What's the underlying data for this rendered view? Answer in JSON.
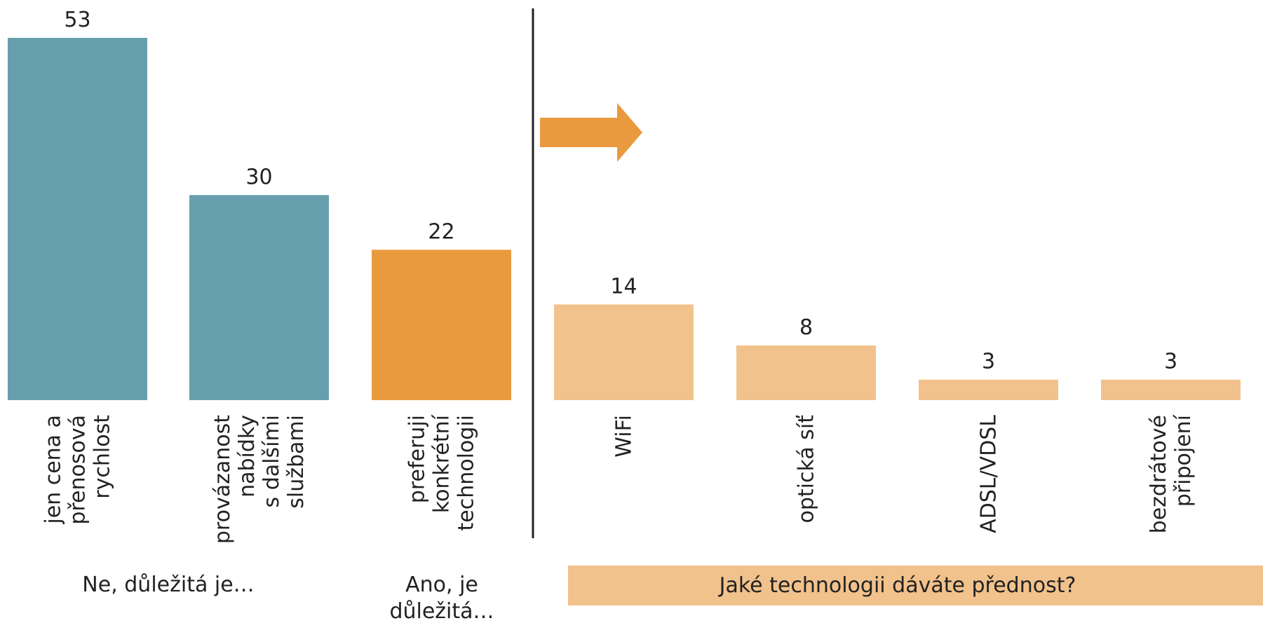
{
  "chart_data": {
    "type": "bar",
    "title": "",
    "xlabel": "",
    "ylabel": "",
    "ylim": [
      0,
      53
    ],
    "categories": [
      [
        "jen cena a",
        "přenosová",
        "rychlost"
      ],
      [
        "provázanost",
        "nabídky",
        "s dalšími",
        "službami"
      ],
      [
        "preferuji",
        "konkrétní",
        "technologii"
      ],
      [
        "WiFi"
      ],
      [
        "optická síť"
      ],
      [
        "ADSL/VDSL"
      ],
      [
        "bezdrátové",
        "připojení"
      ]
    ],
    "values": [
      53,
      30,
      22,
      14,
      8,
      3,
      3
    ],
    "bar_colors": [
      "#679fac",
      "#679fac",
      "#ea9a3e",
      "#f2c28c",
      "#f2c28c",
      "#f2c28c",
      "#f2c28c"
    ],
    "group_labels": [
      [
        "Ne, důležitá je…"
      ],
      [
        "Ano,  je",
        "důležitá…"
      ]
    ],
    "question": "Jaké technologii dáváte přednost?",
    "grid": false,
    "colors": {
      "teal": "#679fac",
      "orange": "#ea9a3e",
      "light_orange": "#f2c28c",
      "divider": "#222222"
    },
    "icons": [
      "arrow-right-icon"
    ]
  }
}
